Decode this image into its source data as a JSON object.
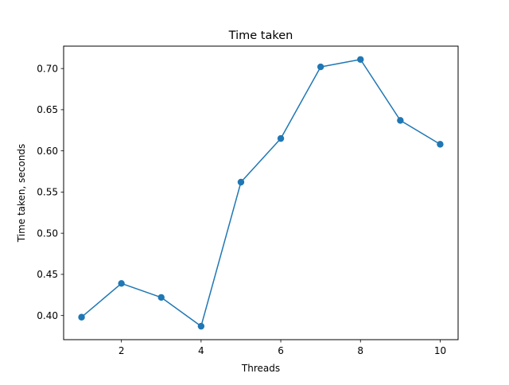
{
  "chart_data": {
    "type": "line",
    "title": "Time taken",
    "xlabel": "Threads",
    "ylabel": "Time taken, seconds",
    "x": [
      1,
      2,
      3,
      4,
      5,
      6,
      7,
      8,
      9,
      10
    ],
    "series": [
      {
        "values": [
          0.398,
          0.439,
          0.422,
          0.387,
          0.562,
          0.615,
          0.702,
          0.711,
          0.637,
          0.608
        ],
        "color": "#1f77b4",
        "marker": "circle"
      }
    ],
    "xlim": [
      0.55,
      10.45
    ],
    "ylim": [
      0.3707,
      0.7272
    ],
    "xticks": [
      2,
      4,
      6,
      8,
      10
    ],
    "xtick_labels": [
      "2",
      "4",
      "6",
      "8",
      "10"
    ],
    "yticks": [
      0.4,
      0.45,
      0.5,
      0.55,
      0.6,
      0.65,
      0.7
    ],
    "ytick_labels": [
      "0.40",
      "0.45",
      "0.50",
      "0.55",
      "0.60",
      "0.65",
      "0.70"
    ],
    "grid": false,
    "legend": "none"
  }
}
